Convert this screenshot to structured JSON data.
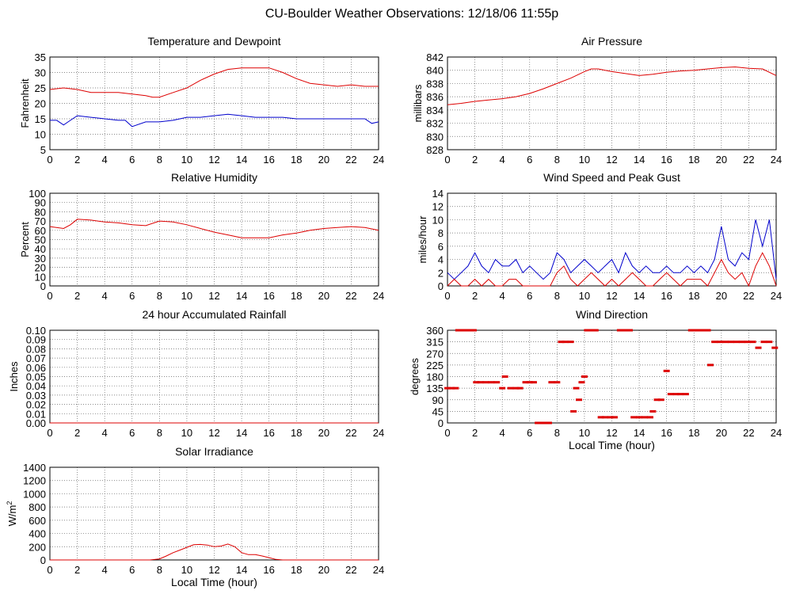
{
  "page_title": "CU-Boulder Weather Observations: 12/18/06 11:55p",
  "colors": {
    "red": "#dd0000",
    "blue": "#0000cc",
    "grid": "#666666",
    "axis": "#000000"
  },
  "chart_data": [
    {
      "id": "temp",
      "type": "line",
      "title": "Temperature and Dewpoint",
      "xlabel": "",
      "ylabel": "Fahrenheit",
      "xlim": [
        0,
        24
      ],
      "ylim": [
        5,
        35
      ],
      "xticks": [
        0,
        2,
        4,
        6,
        8,
        10,
        12,
        14,
        16,
        18,
        20,
        22,
        24
      ],
      "yticks": [
        5,
        10,
        15,
        20,
        25,
        30,
        35
      ],
      "series": [
        {
          "name": "Temperature",
          "color": "#dd0000",
          "x": [
            0,
            1,
            2,
            3,
            4,
            5,
            6,
            7,
            7.5,
            8,
            9,
            10,
            11,
            12,
            13,
            14,
            15,
            16,
            17,
            18,
            19,
            20,
            21,
            22,
            23,
            24
          ],
          "y": [
            24.5,
            25,
            24.5,
            23.5,
            23.5,
            23.5,
            23,
            22.5,
            22,
            22,
            23.5,
            25,
            27.5,
            29.5,
            31,
            31.5,
            31.5,
            31.5,
            30,
            28,
            26.5,
            26,
            25.5,
            26,
            25.5,
            25.5
          ]
        },
        {
          "name": "Dewpoint",
          "color": "#0000cc",
          "x": [
            0,
            0.5,
            1,
            1.5,
            2,
            3,
            4,
            5,
            5.5,
            6,
            7,
            8,
            9,
            10,
            11,
            12,
            13,
            14,
            15,
            16,
            17,
            18,
            19,
            20,
            21,
            22,
            23,
            23.5,
            24
          ],
          "y": [
            14.5,
            14.5,
            13,
            14.5,
            16,
            15.5,
            15,
            14.5,
            14.5,
            12.5,
            14,
            14,
            14.5,
            15.5,
            15.5,
            16,
            16.5,
            16,
            15.5,
            15.5,
            15.5,
            15,
            15,
            15,
            15,
            15,
            15,
            13.5,
            14
          ]
        }
      ]
    },
    {
      "id": "pressure",
      "type": "line",
      "title": "Air Pressure",
      "xlabel": "",
      "ylabel": "millibars",
      "xlim": [
        0,
        24
      ],
      "ylim": [
        828,
        842
      ],
      "xticks": [
        0,
        2,
        4,
        6,
        8,
        10,
        12,
        14,
        16,
        18,
        20,
        22,
        24
      ],
      "yticks": [
        828,
        830,
        832,
        834,
        836,
        838,
        840,
        842
      ],
      "series": [
        {
          "name": "Pressure",
          "color": "#dd0000",
          "x": [
            0,
            1,
            2,
            3,
            4,
            5,
            6,
            7,
            8,
            9,
            10,
            10.5,
            11,
            12,
            13,
            14,
            15,
            16,
            17,
            18,
            19,
            20,
            21,
            22,
            23,
            24
          ],
          "y": [
            834.8,
            835,
            835.3,
            835.5,
            835.7,
            836,
            836.5,
            837.2,
            838,
            838.8,
            839.8,
            840.2,
            840.2,
            839.8,
            839.5,
            839.2,
            839.4,
            839.7,
            839.9,
            840,
            840.2,
            840.4,
            840.5,
            840.3,
            840.2,
            839.2
          ]
        }
      ]
    },
    {
      "id": "humidity",
      "type": "line",
      "title": "Relative Humidity",
      "xlabel": "",
      "ylabel": "Percent",
      "xlim": [
        0,
        24
      ],
      "ylim": [
        0,
        100
      ],
      "xticks": [
        0,
        2,
        4,
        6,
        8,
        10,
        12,
        14,
        16,
        18,
        20,
        22,
        24
      ],
      "yticks": [
        0,
        10,
        20,
        30,
        40,
        50,
        60,
        70,
        80,
        90,
        100
      ],
      "series": [
        {
          "name": "Relative Humidity",
          "color": "#dd0000",
          "x": [
            0,
            1,
            1.5,
            2,
            3,
            4,
            5,
            6,
            7,
            8,
            9,
            10,
            11,
            12,
            13,
            14,
            15,
            16,
            17,
            18,
            19,
            20,
            21,
            22,
            23,
            24
          ],
          "y": [
            64,
            62,
            66,
            72,
            71,
            69,
            68,
            66,
            65,
            70,
            69,
            66,
            62,
            58,
            55,
            52,
            52,
            52,
            55,
            57,
            60,
            62,
            63,
            64,
            63,
            60
          ]
        }
      ]
    },
    {
      "id": "wind_speed",
      "type": "line",
      "title": "Wind Speed and Peak Gust",
      "xlabel": "",
      "ylabel": "miles/hour",
      "xlim": [
        0,
        24
      ],
      "ylim": [
        0,
        14
      ],
      "xticks": [
        0,
        2,
        4,
        6,
        8,
        10,
        12,
        14,
        16,
        18,
        20,
        22,
        24
      ],
      "yticks": [
        0,
        2,
        4,
        6,
        8,
        10,
        12,
        14
      ],
      "series": [
        {
          "name": "Peak Gust",
          "color": "#0000cc",
          "x": [
            0,
            0.5,
            1,
            1.5,
            2,
            2.5,
            3,
            3.5,
            4,
            4.5,
            5,
            5.5,
            6,
            6.5,
            7,
            7.5,
            8,
            8.5,
            9,
            9.5,
            10,
            10.5,
            11,
            11.5,
            12,
            12.5,
            13,
            13.5,
            14,
            14.5,
            15,
            15.5,
            16,
            16.5,
            17,
            17.5,
            18,
            18.5,
            19,
            19.5,
            20,
            20.5,
            21,
            21.5,
            22,
            22.5,
            23,
            23.5,
            24
          ],
          "y": [
            2,
            1,
            2,
            3,
            5,
            3,
            2,
            4,
            3,
            3,
            4,
            2,
            3,
            2,
            1,
            2,
            5,
            4,
            2,
            3,
            4,
            3,
            2,
            3,
            4,
            2,
            5,
            3,
            2,
            3,
            2,
            2,
            3,
            2,
            2,
            3,
            2,
            3,
            2,
            4,
            9,
            4,
            3,
            5,
            4,
            10,
            6,
            10,
            1
          ]
        },
        {
          "name": "Wind Speed",
          "color": "#dd0000",
          "x": [
            0,
            0.5,
            1,
            1.5,
            2,
            2.5,
            3,
            3.5,
            4,
            4.5,
            5,
            5.5,
            6,
            6.5,
            7,
            7.5,
            8,
            8.5,
            9,
            9.5,
            10,
            10.5,
            11,
            11.5,
            12,
            12.5,
            13,
            13.5,
            14,
            14.5,
            15,
            15.5,
            16,
            16.5,
            17,
            17.5,
            18,
            18.5,
            19,
            19.5,
            20,
            20.5,
            21,
            21.5,
            22,
            22.5,
            23,
            23.5,
            24
          ],
          "y": [
            0,
            1,
            0,
            0,
            1,
            0,
            1,
            0,
            0,
            1,
            1,
            0,
            0,
            0,
            0,
            0,
            2,
            3,
            1,
            0,
            1,
            2,
            1,
            0,
            1,
            0,
            1,
            2,
            1,
            0,
            0,
            1,
            2,
            1,
            0,
            1,
            1,
            1,
            0,
            2,
            4,
            2,
            1,
            2,
            0,
            3,
            5,
            3,
            0
          ]
        }
      ]
    },
    {
      "id": "rainfall",
      "type": "line",
      "title": "24 hour Accumulated Rainfall",
      "xlabel": "",
      "ylabel": "Inches",
      "xlim": [
        0,
        24
      ],
      "ylim": [
        0,
        0.1
      ],
      "xticks": [
        0,
        2,
        4,
        6,
        8,
        10,
        12,
        14,
        16,
        18,
        20,
        22,
        24
      ],
      "yticks": [
        "0.00",
        "0.01",
        "0.02",
        "0.03",
        "0.04",
        "0.05",
        "0.06",
        "0.07",
        "0.08",
        "0.09",
        "0.10"
      ],
      "series": [
        {
          "name": "Rainfall",
          "color": "#dd0000",
          "x": [
            0,
            24
          ],
          "y": [
            0,
            0
          ]
        }
      ]
    },
    {
      "id": "wind_dir",
      "type": "scatter",
      "title": "Wind Direction",
      "xlabel": "Local Time (hour)",
      "ylabel": "degrees",
      "xlim": [
        0,
        24
      ],
      "ylim": [
        0,
        360
      ],
      "xticks": [
        0,
        2,
        4,
        6,
        8,
        10,
        12,
        14,
        16,
        18,
        20,
        22,
        24
      ],
      "yticks": [
        0,
        45,
        90,
        135,
        180,
        225,
        270,
        315,
        360
      ],
      "series": [
        {
          "name": "Direction",
          "color": "#dd0000",
          "x": [
            0,
            0.3,
            0.6,
            0.8,
            1,
            1.3,
            1.6,
            1.9,
            2.1,
            2.4,
            2.8,
            3.2,
            3.6,
            4,
            4.2,
            4.6,
            5,
            5.3,
            5.7,
            6,
            6.3,
            6.6,
            6.8,
            7,
            7.4,
            7.6,
            8,
            8.3,
            8.6,
            9,
            9.2,
            9.4,
            9.6,
            9.8,
            10,
            10.2,
            10.5,
            10.8,
            11.2,
            11.5,
            11.9,
            12.2,
            12.6,
            13,
            13.3,
            13.6,
            14,
            14.4,
            14.8,
            15,
            15.3,
            15.6,
            16,
            16.3,
            16.7,
            17,
            17.4,
            17.8,
            18.2,
            18.6,
            19,
            19.2,
            19.5,
            19.9,
            20.3,
            20.7,
            21.1,
            21.5,
            21.9,
            22.3,
            22.7,
            23.1,
            23.5,
            23.9
          ],
          "y": [
            135,
            135,
            135,
            360,
            360,
            360,
            360,
            360,
            158,
            158,
            158,
            158,
            158,
            135,
            180,
            135,
            135,
            135,
            158,
            158,
            158,
            0,
            0,
            0,
            0,
            158,
            158,
            315,
            315,
            315,
            45,
            135,
            90,
            158,
            180,
            360,
            360,
            360,
            22,
            22,
            22,
            22,
            360,
            360,
            360,
            22,
            22,
            22,
            22,
            45,
            90,
            90,
            202,
            112,
            112,
            112,
            112,
            360,
            360,
            360,
            360,
            225,
            315,
            315,
            315,
            315,
            315,
            315,
            315,
            315,
            292,
            315,
            315,
            292
          ]
        }
      ]
    },
    {
      "id": "solar",
      "type": "line",
      "title": "Solar Irradiance",
      "xlabel": "Local Time (hour)",
      "ylabel": "W/m",
      "ylabel_sup": "2",
      "xlim": [
        0,
        24
      ],
      "ylim": [
        0,
        1400
      ],
      "xticks": [
        0,
        2,
        4,
        6,
        8,
        10,
        12,
        14,
        16,
        18,
        20,
        22,
        24
      ],
      "yticks": [
        0,
        200,
        400,
        600,
        800,
        1000,
        1200,
        1400
      ],
      "series": [
        {
          "name": "Solar",
          "color": "#dd0000",
          "x": [
            0,
            7.3,
            8,
            8.5,
            9,
            9.5,
            10,
            10.5,
            11,
            11.5,
            12,
            12.5,
            13,
            13.5,
            14,
            14.5,
            15,
            15.5,
            16,
            16.5,
            17,
            24
          ],
          "y": [
            0,
            0,
            15,
            60,
            110,
            150,
            190,
            230,
            235,
            225,
            200,
            210,
            240,
            200,
            110,
            80,
            80,
            60,
            35,
            8,
            0,
            0
          ]
        }
      ]
    }
  ]
}
